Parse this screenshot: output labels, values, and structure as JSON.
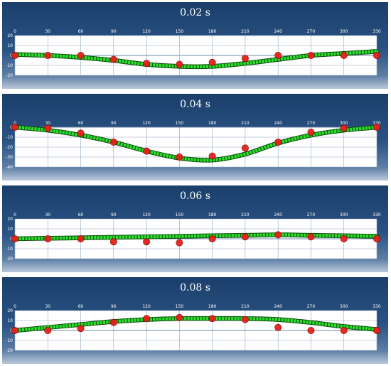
{
  "chart_data": [
    {
      "type": "line",
      "title": "0.02 s",
      "xlim": [
        0,
        330
      ],
      "ylim": [
        -20,
        20
      ],
      "xticks": [
        0,
        30,
        60,
        90,
        120,
        150,
        180,
        210,
        240,
        270,
        300,
        330
      ],
      "yticks": [
        20,
        10,
        0,
        -10,
        -20
      ],
      "grid": true,
      "series": [
        {
          "style": "curve",
          "color": "#2ee02e",
          "x": [
            0,
            30,
            60,
            90,
            120,
            150,
            180,
            210,
            240,
            270,
            300,
            330
          ],
          "y": [
            1,
            0,
            -2,
            -5,
            -9,
            -11,
            -11,
            -8,
            -4,
            0,
            2,
            4
          ]
        },
        {
          "style": "markers",
          "color": "#e8201a",
          "x": [
            0,
            30,
            60,
            90,
            120,
            150,
            180,
            210,
            240,
            270,
            300,
            330
          ],
          "y": [
            0,
            0,
            0,
            -4,
            -8,
            -9,
            -7,
            -3,
            0,
            0,
            0,
            0
          ]
        }
      ]
    },
    {
      "type": "line",
      "title": "0.04 s",
      "xlim": [
        0,
        330
      ],
      "ylim": [
        -40,
        0
      ],
      "xticks": [
        0,
        30,
        60,
        90,
        120,
        150,
        180,
        210,
        240,
        270,
        300,
        330
      ],
      "yticks": [
        0,
        -10,
        -20,
        -30,
        -40
      ],
      "grid": true,
      "series": [
        {
          "style": "curve",
          "color": "#2ee02e",
          "x": [
            0,
            30,
            60,
            90,
            120,
            150,
            180,
            210,
            240,
            270,
            300,
            330
          ],
          "y": [
            0,
            -3,
            -8,
            -15,
            -24,
            -31,
            -33,
            -27,
            -16,
            -8,
            -3,
            0
          ]
        },
        {
          "style": "markers",
          "color": "#e8201a",
          "x": [
            0,
            30,
            60,
            90,
            120,
            150,
            180,
            210,
            240,
            270,
            300,
            330
          ],
          "y": [
            0,
            -1,
            -6,
            -15,
            -24,
            -30,
            -29,
            -21,
            -15,
            -5,
            -1,
            0
          ]
        }
      ]
    },
    {
      "type": "line",
      "title": "0.06 s",
      "xlim": [
        0,
        330
      ],
      "ylim": [
        -20,
        20
      ],
      "xticks": [
        0,
        30,
        60,
        90,
        120,
        150,
        180,
        210,
        240,
        270,
        300,
        330
      ],
      "yticks": [
        20,
        10,
        0,
        -10,
        -20
      ],
      "grid": true,
      "series": [
        {
          "style": "curve",
          "color": "#2ee02e",
          "x": [
            0,
            30,
            60,
            90,
            120,
            150,
            180,
            210,
            240,
            270,
            300,
            330
          ],
          "y": [
            0,
            0.5,
            1,
            1.5,
            2,
            2.5,
            3,
            3.5,
            4,
            3.5,
            3,
            2.5
          ]
        },
        {
          "style": "markers",
          "color": "#e8201a",
          "x": [
            0,
            30,
            60,
            90,
            120,
            150,
            180,
            210,
            240,
            270,
            300,
            330
          ],
          "y": [
            0,
            0,
            0,
            -3,
            -3,
            -4,
            0,
            2,
            4,
            2,
            0,
            0
          ]
        }
      ]
    },
    {
      "type": "line",
      "title": "0.08 s",
      "xlim": [
        0,
        330
      ],
      "ylim": [
        -20,
        20
      ],
      "xticks": [
        0,
        30,
        60,
        90,
        120,
        150,
        180,
        210,
        240,
        270,
        300,
        330
      ],
      "yticks": [
        20,
        10,
        0,
        -10,
        -20
      ],
      "grid": true,
      "series": [
        {
          "style": "curve",
          "color": "#2ee02e",
          "x": [
            0,
            30,
            60,
            90,
            120,
            150,
            180,
            210,
            240,
            270,
            300,
            330
          ],
          "y": [
            0,
            3,
            6,
            9,
            11,
            12,
            12,
            12,
            11,
            8,
            4,
            1
          ]
        },
        {
          "style": "markers",
          "color": "#e8201a",
          "x": [
            0,
            30,
            60,
            90,
            120,
            150,
            180,
            210,
            240,
            270,
            300,
            330
          ],
          "y": [
            0,
            0,
            2,
            8,
            12,
            13,
            12,
            11,
            3,
            0,
            0,
            0
          ]
        }
      ]
    }
  ]
}
